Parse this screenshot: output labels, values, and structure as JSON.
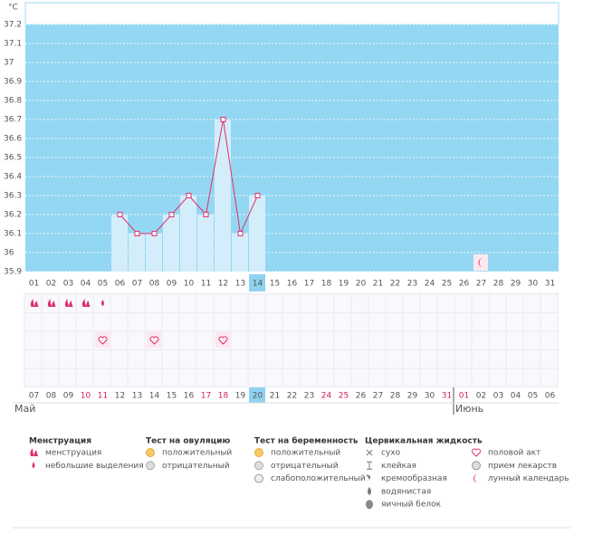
{
  "chart_data": {
    "type": "line",
    "y_label": "°C",
    "categories": [
      "01",
      "02",
      "03",
      "04",
      "05",
      "06",
      "07",
      "08",
      "09",
      "10",
      "11",
      "12",
      "13",
      "14",
      "15",
      "16",
      "17",
      "18",
      "19",
      "20",
      "21",
      "22",
      "23",
      "24",
      "25",
      "26",
      "27",
      "28",
      "29",
      "30",
      "31"
    ],
    "series": [
      {
        "name": "temperature",
        "color": "#e0306a",
        "values": [
          null,
          null,
          null,
          null,
          null,
          36.2,
          36.1,
          36.1,
          36.2,
          36.3,
          36.2,
          36.7,
          36.1,
          36.3,
          null,
          null,
          null,
          null,
          null,
          null,
          null,
          null,
          null,
          null,
          null,
          null,
          null,
          null,
          null,
          null,
          null
        ]
      }
    ],
    "ylim": [
      35.9,
      37.2
    ],
    "yticks": [
      35.9,
      36,
      36.1,
      36.2,
      36.3,
      36.4,
      36.5,
      36.6,
      36.7,
      36.8,
      36.9,
      37,
      37.1,
      37.2
    ],
    "grid": true,
    "highlight": "14",
    "markers": [
      {
        "row": "chart",
        "day": "27",
        "kind": "moon"
      },
      {
        "row": 0,
        "day": "01",
        "kind": "heavy"
      },
      {
        "row": 0,
        "day": "02",
        "kind": "heavy"
      },
      {
        "row": 0,
        "day": "03",
        "kind": "heavy"
      },
      {
        "row": 0,
        "day": "04",
        "kind": "heavy"
      },
      {
        "row": 0,
        "day": "05",
        "kind": "light"
      },
      {
        "row": 2,
        "day": "05",
        "kind": "heart"
      },
      {
        "row": 2,
        "day": "08",
        "kind": "heart"
      },
      {
        "row": 2,
        "day": "12",
        "kind": "heart"
      }
    ]
  },
  "calendar_days": [
    {
      "label": "07",
      "month": "Май"
    },
    {
      "label": "08"
    },
    {
      "label": "09"
    },
    {
      "label": "10",
      "weekend": true
    },
    {
      "label": "11",
      "weekend": true
    },
    {
      "label": "12"
    },
    {
      "label": "13"
    },
    {
      "label": "14"
    },
    {
      "label": "15"
    },
    {
      "label": "16"
    },
    {
      "label": "17",
      "weekend": true
    },
    {
      "label": "18",
      "weekend": true
    },
    {
      "label": "19"
    },
    {
      "label": "20",
      "today": true
    },
    {
      "label": "21"
    },
    {
      "label": "22"
    },
    {
      "label": "23"
    },
    {
      "label": "24",
      "weekend": true
    },
    {
      "label": "25",
      "weekend": true
    },
    {
      "label": "26"
    },
    {
      "label": "27"
    },
    {
      "label": "28"
    },
    {
      "label": "29"
    },
    {
      "label": "30"
    },
    {
      "label": "31",
      "weekend": true
    },
    {
      "label": "01",
      "weekend": true,
      "month": "Июнь"
    },
    {
      "label": "02"
    },
    {
      "label": "03"
    },
    {
      "label": "04"
    },
    {
      "label": "05"
    },
    {
      "label": "06"
    }
  ],
  "legend": [
    {
      "title": "Менструация",
      "items": [
        {
          "label": "менструация",
          "icon": "heavy"
        },
        {
          "label": "небольшие выделения",
          "icon": "light"
        }
      ]
    },
    {
      "title": "Тест на овуляцию",
      "items": [
        {
          "label": "положительный",
          "icon": "pos"
        },
        {
          "label": "отрицательный",
          "icon": "neg"
        }
      ]
    },
    {
      "title": "Тест на беременность",
      "items": [
        {
          "label": "положительный",
          "icon": "pos"
        },
        {
          "label": "отрицательный",
          "icon": "neg"
        },
        {
          "label": "слабоположительный",
          "icon": "weak"
        }
      ]
    },
    {
      "title": "Цервикальная жидкость",
      "items": [
        {
          "label": "сухо",
          "icon": "dry"
        },
        {
          "label": "клейкая",
          "icon": "sticky"
        },
        {
          "label": "кремообразная",
          "icon": "cream"
        },
        {
          "label": "водянистая",
          "icon": "water"
        },
        {
          "label": "яичный белок",
          "icon": "egg"
        }
      ]
    },
    {
      "title": "",
      "items": [
        {
          "label": "половой акт",
          "icon": "heart"
        },
        {
          "label": "прием лекарств",
          "icon": "pill"
        },
        {
          "label": "лунный календарь",
          "icon": "moon"
        }
      ]
    }
  ]
}
